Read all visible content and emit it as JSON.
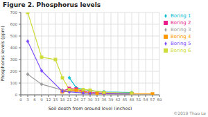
{
  "chart_data": {
    "type": "line",
    "title": "Figure 2. Phosphorus levels",
    "x_label": "Soil depth from ground level (inches)",
    "y_label": "Phosphorus levels (ppm)",
    "annotations": [
      "©2019 Thao Le"
    ],
    "xlim": [
      0,
      60
    ],
    "ylim": [
      0,
      700
    ],
    "xticks": [
      0,
      3,
      6,
      9,
      12,
      15,
      18,
      21,
      24,
      27,
      30,
      33,
      36,
      39,
      42,
      45,
      48,
      51,
      54,
      57,
      60
    ],
    "yticks": [
      0,
      100,
      200,
      300,
      400,
      500,
      600,
      700
    ],
    "grid": true,
    "legend": "right",
    "series": [
      {
        "name": "Boring 1",
        "color": "#00bcd4",
        "marker": "diamond",
        "x": [
          21,
          24,
          30,
          36,
          48
        ],
        "values": [
          145,
          60,
          35,
          25,
          20
        ]
      },
      {
        "name": "Boring 2",
        "color": "#e91e8c",
        "marker": "square",
        "x": [
          18,
          21,
          24,
          27,
          30,
          36,
          48
        ],
        "values": [
          30,
          55,
          50,
          30,
          20,
          15,
          10
        ]
      },
      {
        "name": "Boring 3",
        "color": "#9e9e9e",
        "marker": "diamond",
        "x": [
          3,
          9,
          18,
          21,
          27,
          30,
          36,
          48
        ],
        "values": [
          175,
          90,
          40,
          30,
          20,
          15,
          10,
          8
        ]
      },
      {
        "name": "Boring 4",
        "color": "#ff9800",
        "marker": "square",
        "x": [
          18,
          21,
          24,
          27,
          30,
          33,
          36,
          48,
          57
        ],
        "values": [
          25,
          35,
          40,
          20,
          15,
          12,
          10,
          8,
          8
        ]
      },
      {
        "name": "Boring 5",
        "color": "#7c4dff",
        "marker": "diamond",
        "x": [
          3,
          9,
          18,
          21,
          27,
          30,
          36,
          48
        ],
        "values": [
          455,
          205,
          30,
          25,
          15,
          12,
          10,
          8
        ]
      },
      {
        "name": "Boring 6",
        "color": "#cddc39",
        "marker": "square",
        "x": [
          3,
          9,
          15,
          18,
          21,
          27,
          30,
          36,
          48
        ],
        "values": [
          700,
          320,
          300,
          145,
          45,
          45,
          40,
          20,
          15
        ]
      }
    ]
  }
}
